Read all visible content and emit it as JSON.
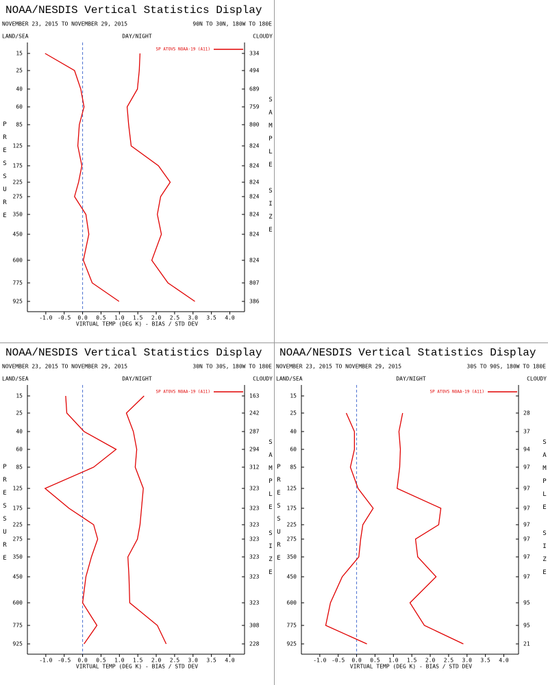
{
  "chart_data": [
    {
      "type": "line",
      "title": "NOAA/NESDIS Vertical Statistics Display",
      "subtitle": "NOVEMBER 23, 2015 TO NOVEMBER 29, 2015",
      "region": "90N TO 30N, 180W TO 180E",
      "land_sea_label": "LAND/SEA",
      "day_night_label": "DAY/NIGHT",
      "cloud_label": "CLOUDY",
      "y_label": "PRESSURE",
      "y2_label": "SAMPLE SIZE",
      "x_label": "VIRTUAL TEMP (DEG K) - BIAS / STD DEV",
      "categories": [
        15,
        25,
        40,
        60,
        85,
        125,
        175,
        225,
        275,
        350,
        450,
        600,
        775,
        925
      ],
      "series": [
        {
          "name": "SP ATOVS NOAA-19 (A11)",
          "color": "#e00000",
          "bias": [
            -1.02,
            -0.22,
            -0.05,
            0.04,
            -0.09,
            -0.13,
            -0.02,
            -0.11,
            -0.22,
            0.09,
            0.17,
            0.02,
            0.26,
            0.99
          ],
          "std_dev": [
            1.56,
            1.54,
            1.49,
            1.21,
            1.25,
            1.32,
            2.06,
            2.38,
            2.12,
            2.03,
            2.14,
            1.88,
            2.32,
            3.05
          ]
        }
      ],
      "sample_size": [
        334,
        494,
        689,
        759,
        800,
        824,
        824,
        824,
        824,
        824,
        824,
        824,
        807,
        386
      ],
      "xlim": [
        -1.5,
        4.4
      ],
      "xticks": [
        {
          "value": -1,
          "label": "-1.0"
        },
        -0.5,
        {
          "value": 0,
          "label": "0.0"
        },
        0.5,
        {
          "value": 1,
          "label": "1.0"
        },
        1.5,
        {
          "value": 2,
          "label": "2.0"
        },
        2.5,
        {
          "value": 3,
          "label": "3.0"
        },
        3.5,
        {
          "value": 4,
          "label": "4.0"
        }
      ],
      "reference_x": 0,
      "reference_color": "#4a6fd0"
    },
    {
      "type": "line",
      "title": "NOAA/NESDIS Vertical Statistics Display",
      "subtitle": "NOVEMBER 23, 2015 TO NOVEMBER 29, 2015",
      "region": "30N TO 30S, 180W TO 180E",
      "land_sea_label": "LAND/SEA",
      "day_night_label": "DAY/NIGHT",
      "cloud_label": "CLOUDY",
      "y_label": "PRESSURE",
      "y2_label": "SAMPLE SIZE",
      "x_label": "VIRTUAL TEMP (DEG K) - BIAS / STD DEV",
      "categories": [
        15,
        25,
        40,
        60,
        85,
        125,
        175,
        225,
        275,
        350,
        450,
        600,
        775,
        925
      ],
      "series": [
        {
          "name": "SP ATOVS NOAA-19 (A11)",
          "color": "#e00000",
          "bias": [
            -0.46,
            -0.43,
            0.04,
            0.91,
            0.3,
            -1.02,
            -0.37,
            0.3,
            0.41,
            0.24,
            0.09,
            0.0,
            0.39,
            0.04
          ],
          "std_dev": [
            1.67,
            1.19,
            1.38,
            1.47,
            1.43,
            1.65,
            1.6,
            1.56,
            1.49,
            1.23,
            1.26,
            1.28,
            2.03,
            2.27
          ]
        }
      ],
      "sample_size": [
        163,
        242,
        287,
        294,
        312,
        323,
        323,
        323,
        323,
        323,
        323,
        323,
        308,
        228
      ],
      "xlim": [
        -1.5,
        4.4
      ],
      "xticks": [
        {
          "value": -1,
          "label": "-1.0"
        },
        -0.5,
        {
          "value": 0,
          "label": "0.0"
        },
        0.5,
        {
          "value": 1,
          "label": "1.0"
        },
        1.5,
        {
          "value": 2,
          "label": "2.0"
        },
        2.5,
        {
          "value": 3,
          "label": "3.0"
        },
        3.5,
        {
          "value": 4,
          "label": "4.0"
        }
      ],
      "reference_x": 0,
      "reference_color": "#4a6fd0"
    },
    {
      "type": "line",
      "title": "NOAA/NESDIS Vertical Statistics Display",
      "subtitle": "NOVEMBER 23, 2015 TO NOVEMBER 29, 2015",
      "region": "30S TO 90S, 180W TO 180E",
      "land_sea_label": "LAND/SEA",
      "day_night_label": "DAY/NIGHT",
      "cloud_label": "CLOUDY",
      "y_label": "PRESSURE",
      "y2_label": "SAMPLE SIZE",
      "x_label": "VIRTUAL TEMP (DEG K) - BIAS / STD DEV",
      "categories": [
        15,
        25,
        40,
        60,
        85,
        125,
        175,
        225,
        275,
        350,
        450,
        600,
        775,
        925
      ],
      "series": [
        {
          "name": "SP ATOVS NOAA-19 (A11)",
          "color": "#e00000",
          "bias": [
            null,
            -0.28,
            -0.06,
            -0.06,
            -0.17,
            0.04,
            0.45,
            0.17,
            0.11,
            0.06,
            -0.39,
            -0.71,
            -0.84,
            0.28
          ],
          "std_dev": [
            null,
            1.25,
            1.15,
            1.19,
            1.17,
            1.1,
            2.29,
            2.23,
            1.6,
            1.66,
            2.16,
            1.45,
            1.84,
            2.9
          ]
        }
      ],
      "sample_size": [
        null,
        28,
        37,
        94,
        97,
        97,
        97,
        97,
        97,
        97,
        97,
        95,
        95,
        21
      ],
      "xlim": [
        -1.5,
        4.4
      ],
      "xticks": [
        {
          "value": -1,
          "label": "-1.0"
        },
        -0.5,
        {
          "value": 0,
          "label": "0.0"
        },
        0.5,
        {
          "value": 1,
          "label": "1.0"
        },
        1.5,
        {
          "value": 2,
          "label": "2.0"
        },
        2.5,
        {
          "value": 3,
          "label": "3.0"
        },
        3.5,
        {
          "value": 4,
          "label": "4.0"
        }
      ],
      "reference_x": 0,
      "reference_color": "#4a6fd0"
    }
  ]
}
